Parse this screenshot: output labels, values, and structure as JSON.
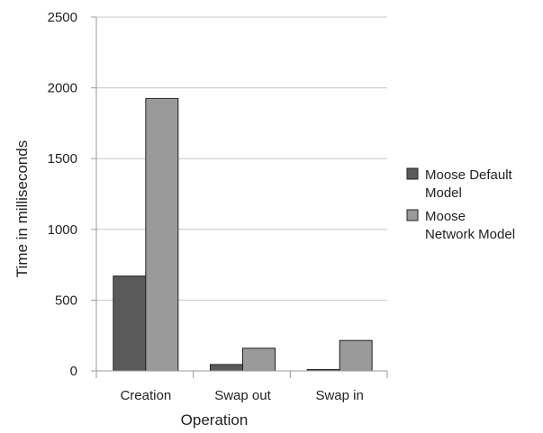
{
  "chart_data": {
    "type": "bar",
    "title": "",
    "xlabel": "Operation",
    "ylabel": "Time in milliseconds",
    "categories": [
      "Creation",
      "Swap out",
      "Swap in"
    ],
    "series": [
      {
        "name": "Moose Default Model",
        "legend_lines": [
          "Moose Default",
          "Model"
        ],
        "color": "#5a5a5a",
        "values": [
          670,
          45,
          10
        ]
      },
      {
        "name": "Moose Network Model",
        "legend_lines": [
          "Moose",
          "Network Model"
        ],
        "color": "#9a9a9a",
        "values": [
          1925,
          160,
          215
        ]
      }
    ],
    "ylim": [
      0,
      2500
    ],
    "yticks": [
      0,
      500,
      1000,
      1500,
      2000,
      2500
    ],
    "grid": true,
    "legend": "right"
  }
}
